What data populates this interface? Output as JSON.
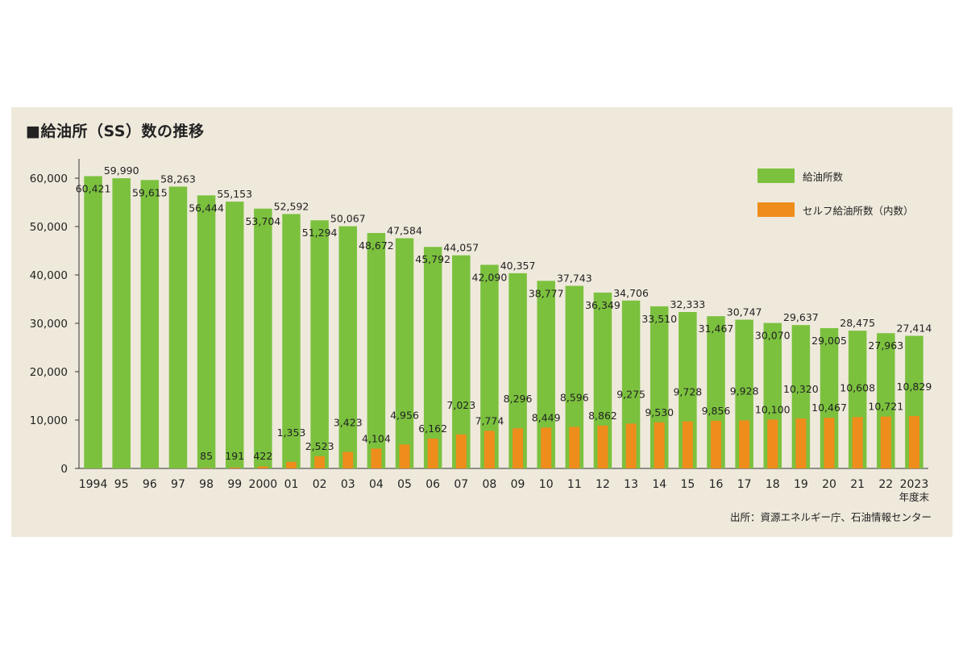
{
  "chart_data": {
    "type": "bar",
    "title": "■給油所（SS）数の推移",
    "categories": [
      "1994",
      "95",
      "96",
      "97",
      "98",
      "99",
      "2000",
      "01",
      "02",
      "03",
      "04",
      "05",
      "06",
      "07",
      "08",
      "09",
      "10",
      "11",
      "12",
      "13",
      "14",
      "15",
      "16",
      "17",
      "18",
      "19",
      "20",
      "21",
      "22",
      "2023"
    ],
    "x_unit_note": "年度末",
    "series": [
      {
        "name": "給油所数",
        "color": "#7bc13e",
        "values": [
          60421,
          59990,
          59615,
          58263,
          56444,
          55153,
          53704,
          52592,
          51294,
          50067,
          48672,
          47584,
          45792,
          44057,
          42090,
          40357,
          38777,
          37743,
          36349,
          34706,
          33510,
          32333,
          31467,
          30747,
          30070,
          29637,
          29005,
          28475,
          27963,
          27414
        ]
      },
      {
        "name": "セルフ給油所数（内数）",
        "color": "#ee8d1b",
        "values": [
          null,
          null,
          null,
          null,
          85,
          191,
          422,
          1353,
          2523,
          3423,
          4104,
          4956,
          6162,
          7023,
          7774,
          8296,
          8449,
          8596,
          8862,
          9275,
          9530,
          9728,
          9856,
          9928,
          10100,
          10320,
          10467,
          10608,
          10721,
          10829
        ]
      }
    ],
    "ylim": [
      0,
      60000
    ],
    "yticks": [
      0,
      10000,
      20000,
      30000,
      40000,
      50000,
      60000
    ],
    "ytick_labels": [
      "0",
      "10,000",
      "20,000",
      "30,000",
      "40,000",
      "50,000",
      "60,000"
    ],
    "legend_position": "top-right",
    "grid": false,
    "source": "出所：資源エネルギー庁、石油情報センター"
  }
}
